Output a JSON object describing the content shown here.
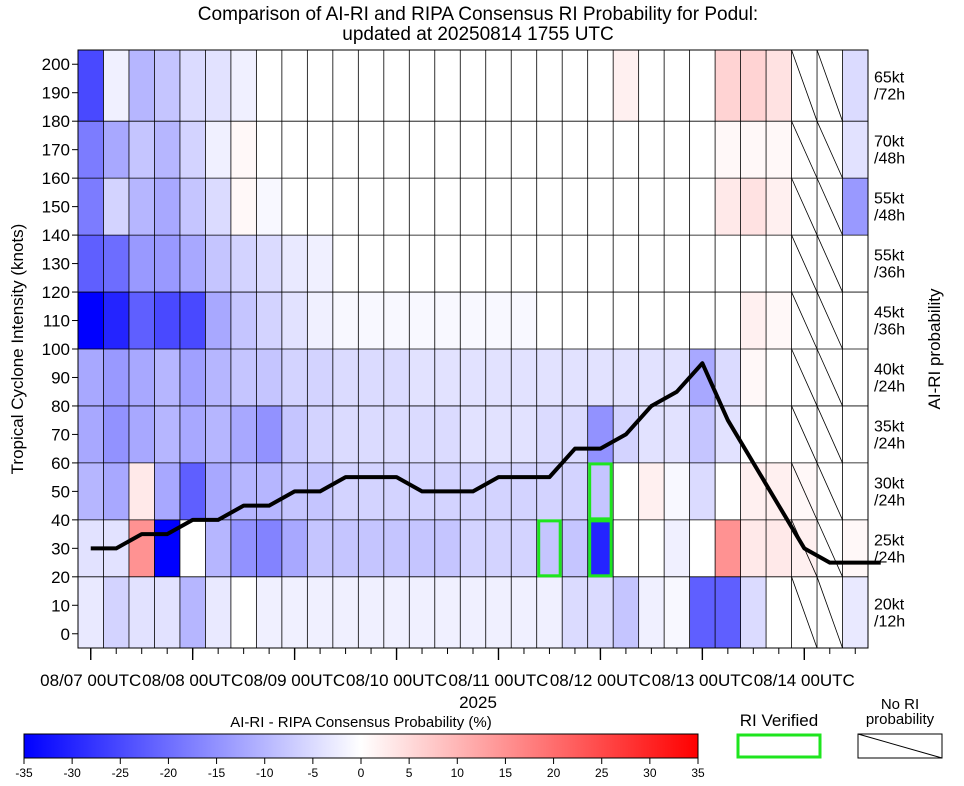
{
  "chart_data": {
    "type": "heatmap",
    "title": "Comparison of AI-RI and RIPA Consensus RI Probability for Podul:",
    "subtitle": "updated at 20250814 1755 UTC",
    "ylabel": "Tropical Cyclone Intensity (knots)",
    "right_label": "AI-RI probability",
    "x_year_label": "2025",
    "x_ticks": [
      "08/07 00UTC",
      "08/08 00UTC",
      "08/09 00UTC",
      "08/10 00UTC",
      "08/11 00UTC",
      "08/12 00UTC",
      "08/13 00UTC",
      "08/14 00UTC"
    ],
    "x_tick_columns": [
      0.5,
      4.5,
      8.5,
      12.5,
      16.5,
      20.5,
      24.5,
      28.5
    ],
    "columns": 31,
    "column_step_hours": 6,
    "y_ticks": [
      0,
      10,
      20,
      30,
      40,
      50,
      60,
      70,
      80,
      90,
      100,
      110,
      120,
      130,
      140,
      150,
      160,
      170,
      180,
      190,
      200
    ],
    "ylim": [
      -5,
      205
    ],
    "bands": [
      {
        "label": [
          "20kt",
          "/12h"
        ],
        "y0": -5,
        "y1": 20
      },
      {
        "label": [
          "25kt",
          "/24h"
        ],
        "y0": 20,
        "y1": 40
      },
      {
        "label": [
          "30kt",
          "/24h"
        ],
        "y0": 40,
        "y1": 60
      },
      {
        "label": [
          "35kt",
          "/24h"
        ],
        "y0": 60,
        "y1": 80
      },
      {
        "label": [
          "40kt",
          "/24h"
        ],
        "y0": 80,
        "y1": 100
      },
      {
        "label": [
          "45kt",
          "/36h"
        ],
        "y0": 100,
        "y1": 120
      },
      {
        "label": [
          "55kt",
          "/36h"
        ],
        "y0": 120,
        "y1": 140
      },
      {
        "label": [
          "55kt",
          "/48h"
        ],
        "y0": 140,
        "y1": 160
      },
      {
        "label": [
          "70kt",
          "/48h"
        ],
        "y0": 160,
        "y1": 180
      },
      {
        "label": [
          "65kt",
          "/72h"
        ],
        "y0": 180,
        "y1": 205
      }
    ],
    "diff_values": [
      [
        -3,
        -6,
        -4,
        -4,
        -10,
        -3,
        0,
        -2,
        -2,
        -2,
        -2,
        -2,
        -2,
        -2,
        -2,
        -2,
        -2,
        -2,
        -2,
        -5,
        -5,
        -8,
        -2,
        -1,
        -22,
        -22,
        -5,
        0,
        0,
        0,
        -3
      ],
      [
        -4,
        -4,
        15,
        -35,
        0,
        -10,
        -15,
        -17,
        -12,
        -8,
        -8,
        -8,
        -8,
        -8,
        -8,
        -6,
        -6,
        -6,
        -8,
        -8,
        -30,
        null,
        0,
        -2,
        0,
        15,
        3,
        3,
        2,
        0,
        1
      ],
      [
        -10,
        -12,
        3,
        -12,
        -22,
        -12,
        -10,
        -10,
        -8,
        -8,
        -6,
        -6,
        -6,
        -6,
        -6,
        -6,
        -6,
        -6,
        -6,
        -6,
        -8,
        null,
        2,
        -1,
        -5,
        0,
        2,
        2,
        1,
        0,
        0
      ],
      [
        -12,
        -15,
        -12,
        -10,
        -12,
        -10,
        -12,
        -15,
        -8,
        -6,
        -5,
        -5,
        -5,
        -5,
        -5,
        -4,
        -4,
        -4,
        -5,
        -5,
        -15,
        -6,
        -4,
        -4,
        -8,
        -4,
        0,
        0,
        0,
        0,
        0
      ],
      [
        -12,
        -14,
        -12,
        -10,
        -13,
        -10,
        -8,
        -8,
        -6,
        -6,
        -5,
        -5,
        -5,
        -4,
        -4,
        -4,
        -4,
        -4,
        -4,
        -4,
        -4,
        -4,
        -4,
        -4,
        -12,
        -5,
        1,
        0,
        0,
        0,
        0
      ],
      [
        -40,
        -30,
        -22,
        -25,
        -25,
        -12,
        -8,
        -6,
        -4,
        -2,
        -1,
        -1,
        -1,
        -1,
        -1,
        -1,
        -1,
        -1,
        0,
        0,
        0,
        0,
        0,
        0,
        0,
        0,
        2,
        1,
        0,
        0,
        0
      ],
      [
        -22,
        -20,
        -14,
        -14,
        -12,
        -8,
        -6,
        -5,
        -3,
        -2,
        0,
        0,
        0,
        0,
        0,
        0,
        0,
        0,
        0,
        0,
        0,
        0,
        0,
        0,
        0,
        0,
        0,
        0,
        0,
        0,
        0
      ],
      [
        -18,
        -6,
        -10,
        -12,
        -8,
        -5,
        1,
        -1,
        0,
        0,
        0,
        0,
        0,
        0,
        0,
        0,
        0,
        0,
        0,
        0,
        0,
        0,
        0,
        0,
        0,
        3,
        4,
        2,
        0,
        0,
        -14
      ],
      [
        -18,
        -12,
        -8,
        -10,
        -6,
        -2,
        1,
        0,
        0,
        0,
        0,
        0,
        0,
        0,
        0,
        0,
        0,
        0,
        0,
        0,
        0,
        0,
        0,
        0,
        0,
        1,
        1,
        1,
        0,
        0,
        -4
      ],
      [
        -25,
        -2,
        -10,
        -8,
        -5,
        -4,
        -2,
        0,
        0,
        0,
        0,
        0,
        0,
        0,
        0,
        0,
        0,
        0,
        0,
        0,
        0,
        2,
        0,
        0,
        0,
        6,
        6,
        4,
        0,
        0,
        -5
      ]
    ],
    "no_ri_columns": [
      28,
      29
    ],
    "ri_verified": [
      {
        "column": 18,
        "band": 1
      },
      {
        "column": 20,
        "band": 1
      },
      {
        "column": 20,
        "band": 2
      }
    ],
    "intensity_track": [
      30,
      30,
      35,
      35,
      40,
      40,
      45,
      45,
      50,
      50,
      55,
      55,
      55,
      50,
      50,
      50,
      55,
      55,
      55,
      65,
      65,
      70,
      80,
      85,
      95,
      75,
      60,
      45,
      30,
      25,
      25,
      25
    ],
    "intensity_track_start_column": 0.5,
    "colorbar": {
      "label": "AI-RI - RIPA Consensus Probability (%)",
      "min": -35,
      "max": 35,
      "ticks": [
        -35,
        -30,
        -25,
        -20,
        -15,
        -10,
        -5,
        0,
        5,
        10,
        15,
        20,
        25,
        30,
        35
      ]
    },
    "legend": {
      "ri_verified_label": "RI Verified",
      "no_ri_label": [
        "No RI",
        "probability"
      ]
    }
  }
}
